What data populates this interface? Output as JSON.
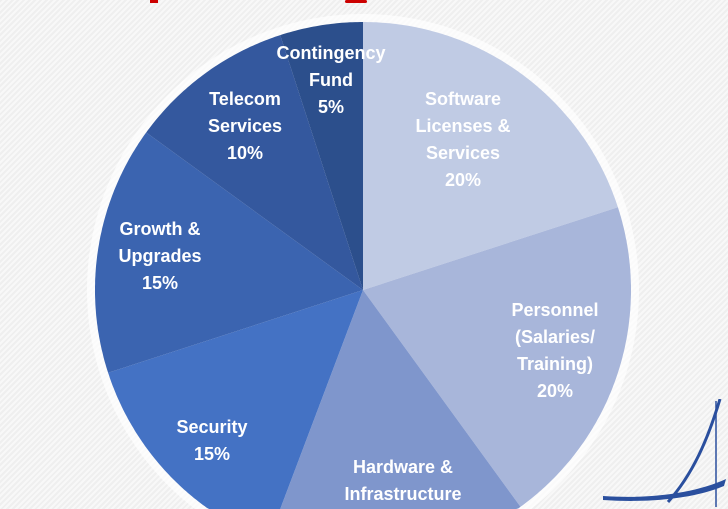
{
  "chart_data": {
    "type": "pie",
    "start": "top",
    "direction": "clockwise",
    "slices": [
      {
        "label": "Software Licenses & Services",
        "lines": [
          "Software",
          "Licenses &",
          "Services",
          "20%"
        ],
        "value": 20,
        "color": "#c0cbe4"
      },
      {
        "label": "Personnel (Salaries/ Training)",
        "lines": [
          "Personnel",
          "(Salaries/",
          "Training)",
          "20%"
        ],
        "value": 20,
        "color": "#a8b6da"
      },
      {
        "label": "Hardware & Infrastructure",
        "lines": [
          "Hardware &",
          "Infrastructure"
        ],
        "value": 15,
        "color": "#7f96cc"
      },
      {
        "label": "Security",
        "lines": [
          "Security",
          "15%"
        ],
        "value": 15,
        "color": "#4472c4"
      },
      {
        "label": "Growth & Upgrades",
        "lines": [
          "Growth &",
          "Upgrades",
          "15%"
        ],
        "value": 15,
        "color": "#3b64b0"
      },
      {
        "label": "Telecom Services",
        "lines": [
          "Telecom",
          "Services",
          "10%"
        ],
        "value": 10,
        "color": "#34589e"
      },
      {
        "label": "Contingency Fund",
        "lines": [
          "Contingency",
          "Fund",
          "5%"
        ],
        "value": 5,
        "color": "#2c4f8c"
      }
    ],
    "title_color": "#cc0000",
    "logo_color": "#2a4f9e"
  }
}
